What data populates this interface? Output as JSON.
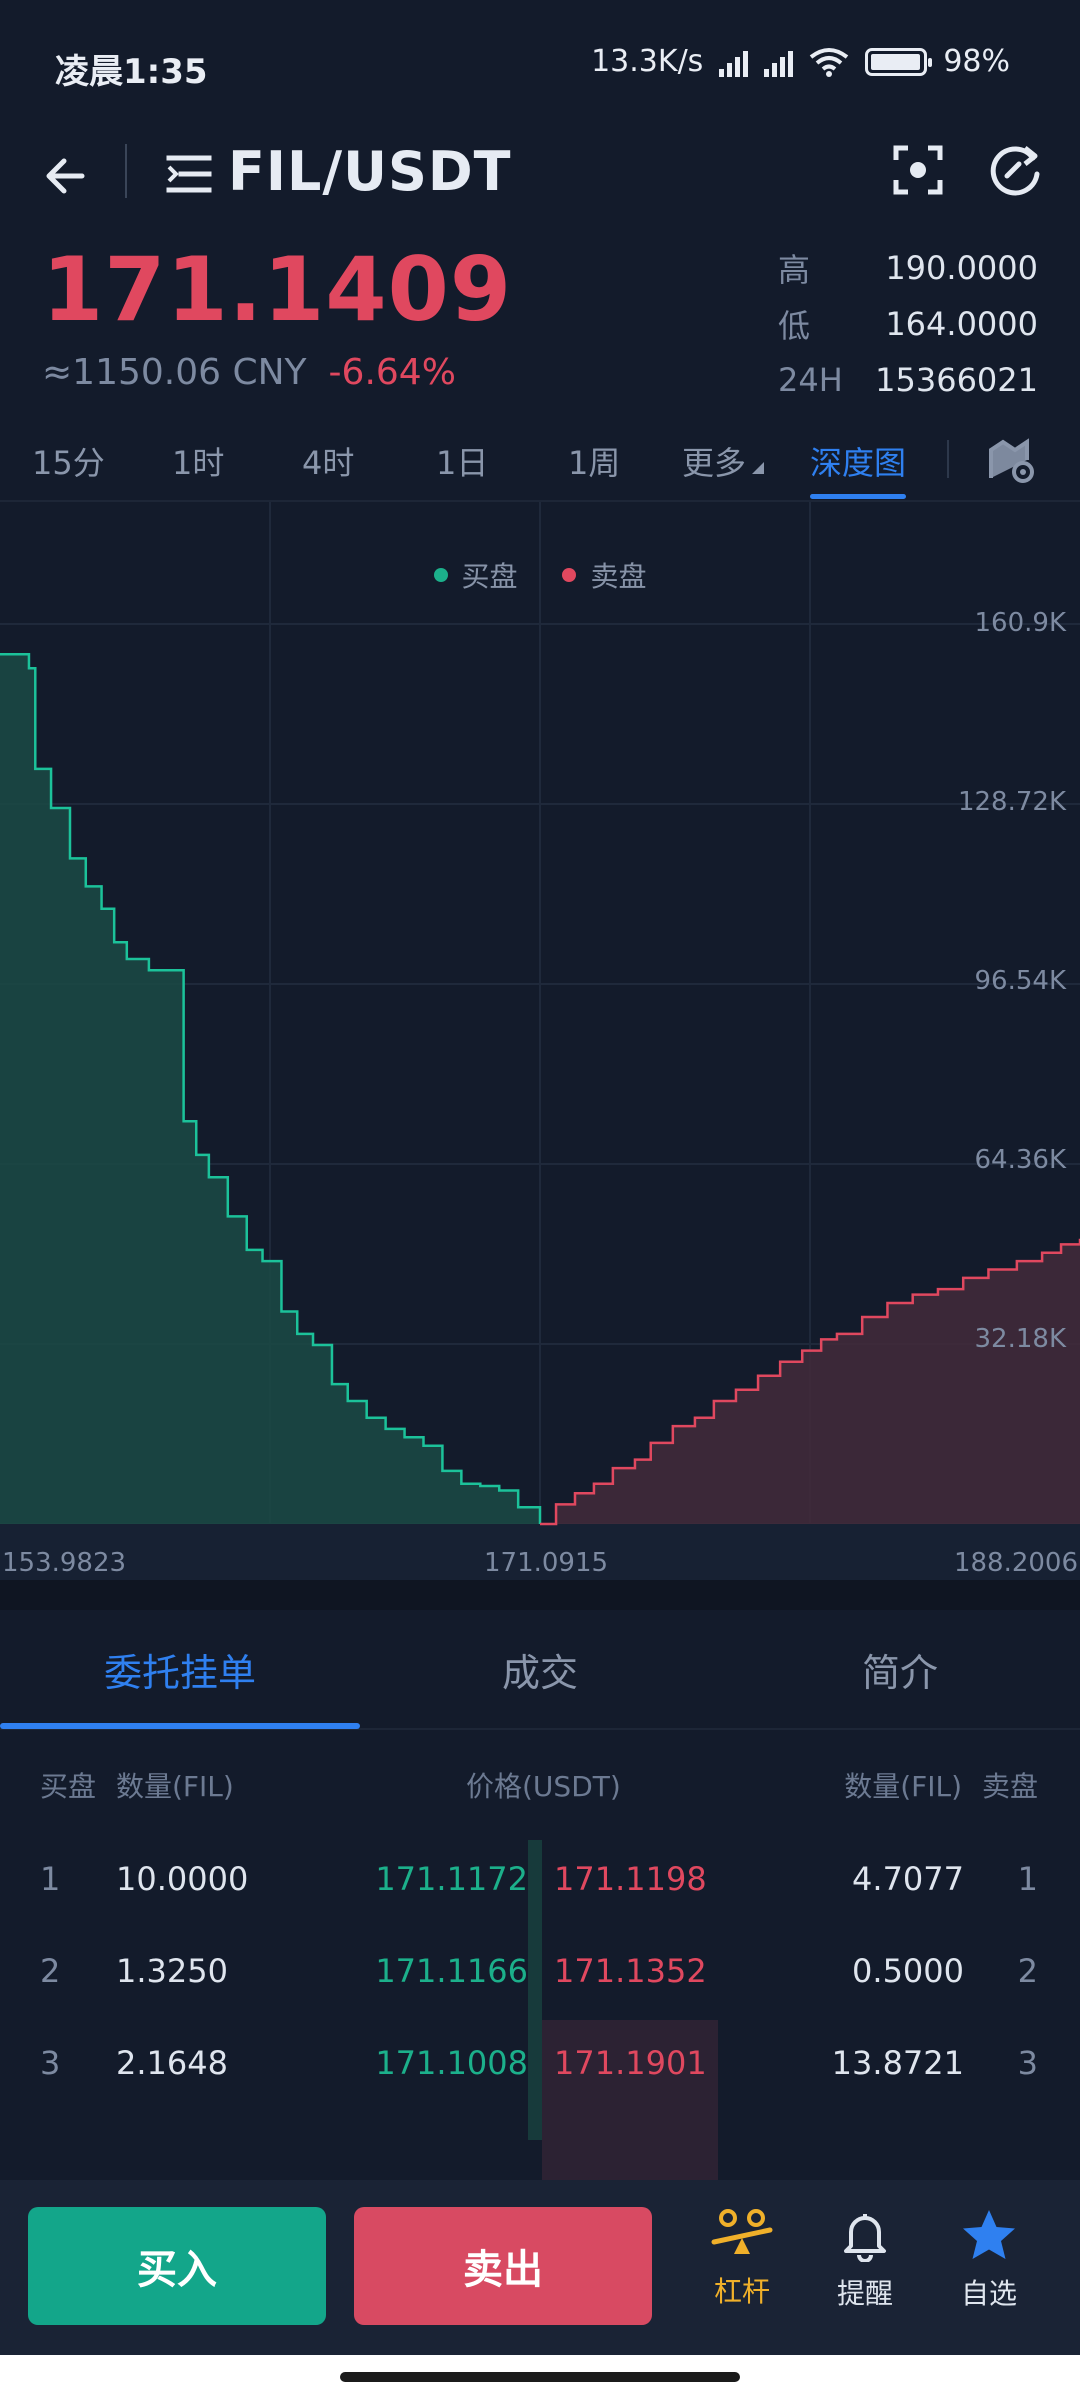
{
  "status_bar": {
    "time": "凌晨1:35",
    "speed": "13.3K/s",
    "battery": "98%",
    "battery_level": 0.98
  },
  "header": {
    "pair": "FIL/USDT",
    "icons": [
      "back-arrow-icon",
      "menu-list-icon",
      "scan-icon",
      "refresh-icon"
    ]
  },
  "price": {
    "last": "171.1409",
    "cny": "≈1150.06 CNY",
    "change": "-6.64%",
    "high_label": "高",
    "high": "190.0000",
    "low_label": "低",
    "low": "164.0000",
    "vol_label": "24H",
    "vol": "15366021"
  },
  "timeframes": [
    "15分",
    "1时",
    "4时",
    "1日",
    "1周",
    "更多",
    "深度图"
  ],
  "active_timeframe": "深度图",
  "chart_data": {
    "type": "area",
    "legend": [
      {
        "label": "买盘",
        "color": "#1cb08b"
      },
      {
        "label": "卖盘",
        "color": "#e0485f"
      }
    ],
    "yticks": [
      "160.9K",
      "128.72K",
      "96.54K",
      "64.36K",
      "32.18K"
    ],
    "ylim": [
      0,
      160900
    ],
    "xticks": [
      "153.9823",
      "171.0915",
      "188.2006"
    ],
    "xlim": [
      153.9823,
      188.2006
    ],
    "bids": {
      "name": "买盘",
      "x": [
        153.9823,
        154.9,
        155.1,
        155.6,
        156.2,
        156.7,
        157.2,
        157.6,
        158.0,
        158.7,
        159.2,
        159.8,
        160.2,
        160.6,
        161.2,
        161.8,
        162.3,
        162.9,
        163.4,
        163.9,
        164.5,
        165.0,
        165.6,
        166.2,
        166.8,
        167.4,
        168.0,
        168.6,
        169.2,
        169.8,
        170.4,
        171.0915
      ],
      "y": [
        155500,
        153000,
        135000,
        128000,
        119000,
        114000,
        110000,
        104000,
        101000,
        99000,
        99000,
        72000,
        66000,
        62000,
        55000,
        49000,
        47000,
        38000,
        34000,
        32000,
        25000,
        22000,
        19000,
        17000,
        15500,
        14000,
        9500,
        7200,
        6800,
        6000,
        3000,
        0
      ]
    },
    "asks": {
      "name": "卖盘",
      "x": [
        171.0915,
        171.6,
        172.2,
        172.8,
        173.4,
        174.1,
        174.6,
        175.3,
        176.0,
        176.6,
        177.3,
        178.0,
        178.7,
        179.4,
        180.0,
        180.5,
        181.3,
        182.1,
        182.9,
        183.7,
        184.5,
        185.3,
        186.2,
        187.0,
        187.6,
        188.2006
      ],
      "y": [
        0,
        3500,
        5500,
        7200,
        10000,
        11500,
        14500,
        17500,
        19000,
        22000,
        24000,
        26500,
        29000,
        31000,
        33000,
        34000,
        37000,
        39500,
        41000,
        42000,
        44000,
        45500,
        47000,
        48500,
        50000,
        51000
      ]
    }
  },
  "book_tabs": [
    "委托挂单",
    "成交",
    "简介"
  ],
  "book_header": {
    "bid": "买盘",
    "qty_left": "数量(FIL)",
    "price": "价格(USDT)",
    "qty_right": "数量(FIL)",
    "ask": "卖盘"
  },
  "order_book": [
    {
      "i": "1",
      "bid_qty": "10.0000",
      "bid_price": "171.1172",
      "ask_price": "171.1198",
      "ask_qty": "4.7077",
      "j": "1"
    },
    {
      "i": "2",
      "bid_qty": "1.3250",
      "bid_price": "171.1166",
      "ask_price": "171.1352",
      "ask_qty": "0.5000",
      "j": "2"
    },
    {
      "i": "3",
      "bid_qty": "2.1648",
      "bid_price": "171.1008",
      "ask_price": "171.1901",
      "ask_qty": "13.8721",
      "j": "3"
    }
  ],
  "actions": {
    "buy": "买入",
    "sell": "卖出",
    "leverage": "杠杆",
    "alert": "提醒",
    "watchlist": "自选"
  }
}
